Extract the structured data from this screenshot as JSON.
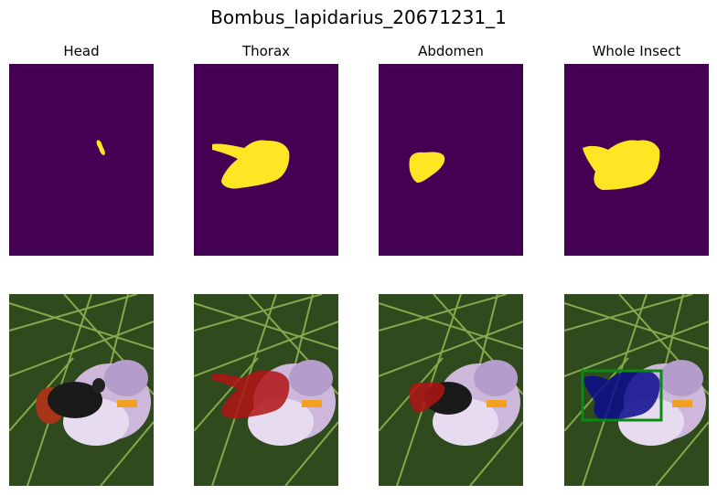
{
  "figure": {
    "title": "Bombus_lapidarius_20671231_1"
  },
  "panels": [
    {
      "title": "Head",
      "kind": "mask"
    },
    {
      "title": "Thorax",
      "kind": "mask"
    },
    {
      "title": "Abdomen",
      "kind": "mask"
    },
    {
      "title": "Whole Insect",
      "kind": "mask"
    }
  ],
  "photos": [
    {
      "kind": "photo",
      "overlay": "none"
    },
    {
      "kind": "photo-overlay",
      "overlay": "thorax"
    },
    {
      "kind": "photo-overlay",
      "overlay": "abdomen"
    },
    {
      "kind": "photo-overlay",
      "overlay": "whole-insect-with-box"
    }
  ],
  "colors": {
    "mask_background": "#440154",
    "mask_foreground": "#fde725",
    "overlay_red": "#b01414",
    "overlay_blue": "#0a0a8c",
    "bbox": "#0a8a14"
  }
}
